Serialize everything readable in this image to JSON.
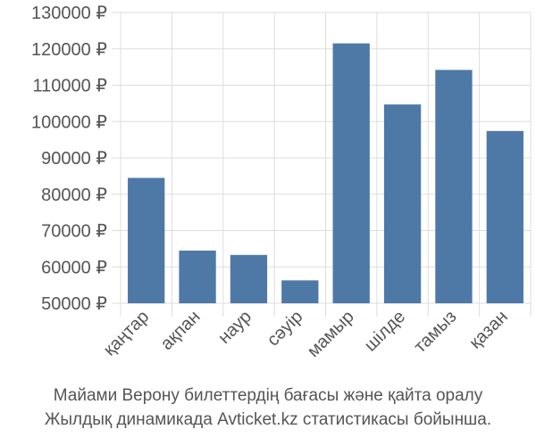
{
  "chart_data": {
    "type": "bar",
    "categories": [
      "қаңтар",
      "ақпан",
      "наур",
      "сәуір",
      "мамыр",
      "шілде",
      "тамыз",
      "қазан"
    ],
    "series": [
      {
        "values": [
          84500,
          64500,
          63300,
          56300,
          121500,
          104700,
          114200,
          97400
        ]
      }
    ],
    "y_ticks": [
      "50000 ₽",
      "60000 ₽",
      "70000 ₽",
      "80000 ₽",
      "90000 ₽",
      "100000 ₽",
      "110000 ₽",
      "120000 ₽",
      "130000 ₽"
    ],
    "ylim": [
      50000,
      130000
    ],
    "bar_color": "#4e79a7",
    "grid": true,
    "legend": "none"
  },
  "caption": {
    "line1": "Майами Верону билеттердің бағасы және қайта оралу",
    "line2": "Жылдық динамикада Avticket.kz статистикасы бойынша."
  }
}
